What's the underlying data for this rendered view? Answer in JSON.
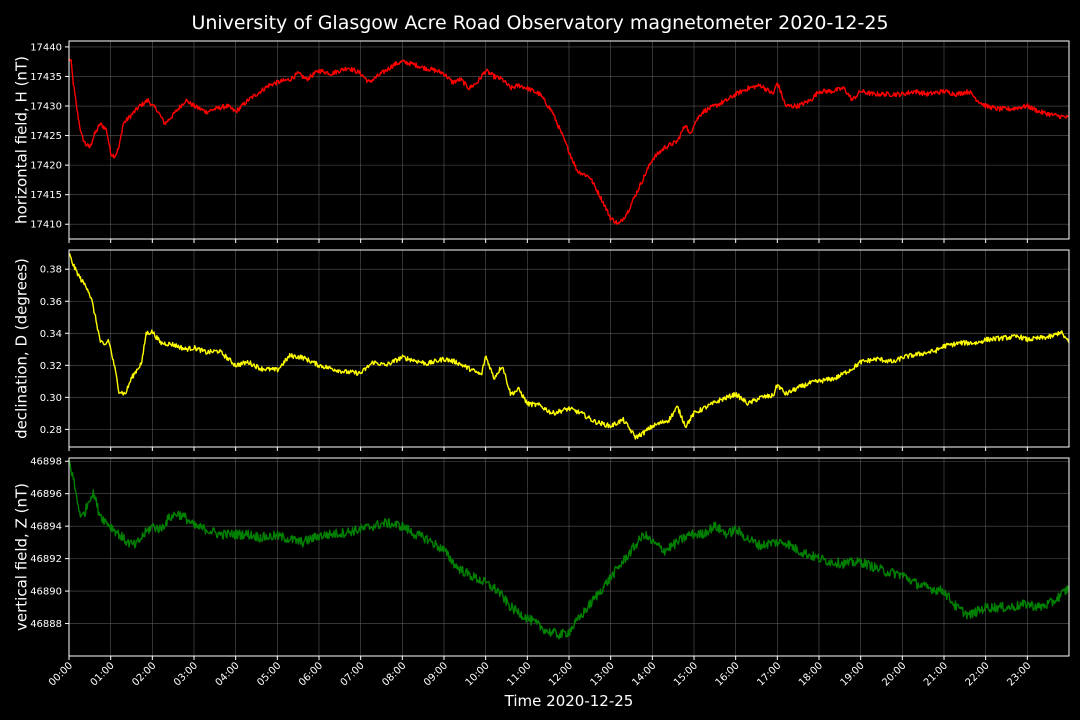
{
  "chart_data": {
    "title": "University of Glasgow Acre Road Observatory magnetometer 2020-12-25",
    "xlabel": "Time 2020-12-25",
    "x_tick_labels": [
      "00:00",
      "01:00",
      "02:00",
      "03:00",
      "04:00",
      "05:00",
      "06:00",
      "07:00",
      "08:00",
      "09:00",
      "10:00",
      "11:00",
      "12:00",
      "13:00",
      "14:00",
      "15:00",
      "16:00",
      "17:00",
      "18:00",
      "19:00",
      "20:00",
      "21:00",
      "22:00",
      "23:00"
    ],
    "xlim_hours": [
      0,
      24
    ],
    "panels": [
      {
        "type": "line",
        "ylabel": "horizontal field, H (nT)",
        "color": "#ff0000",
        "ylim": [
          17407.5,
          17441
        ],
        "y_ticks": [
          17410,
          17415,
          17420,
          17425,
          17430,
          17435,
          17440
        ],
        "y_tick_labels": [
          "17410",
          "17415",
          "17420",
          "17425",
          "17430",
          "17435",
          "17440"
        ],
        "series": {
          "x_hours": [
            0,
            0.05,
            0.1,
            0.2,
            0.3,
            0.4,
            0.5,
            0.6,
            0.75,
            0.9,
            1.0,
            1.1,
            1.2,
            1.3,
            1.5,
            1.7,
            1.9,
            2.0,
            2.1,
            2.3,
            2.5,
            2.8,
            3.0,
            3.3,
            3.5,
            3.8,
            4.0,
            4.3,
            4.5,
            4.8,
            5.0,
            5.3,
            5.5,
            5.7,
            6.0,
            6.3,
            6.5,
            6.7,
            7.0,
            7.2,
            7.5,
            7.8,
            8.0,
            8.3,
            8.5,
            8.8,
            9.0,
            9.2,
            9.4,
            9.6,
            9.8,
            10.0,
            10.2,
            10.4,
            10.6,
            10.8,
            11.0,
            11.3,
            11.6,
            11.9,
            12.2,
            12.5,
            12.8,
            13.0,
            13.2,
            13.4,
            13.6,
            13.8,
            14.0,
            14.3,
            14.6,
            14.8,
            14.9,
            15.0,
            15.2,
            15.5,
            15.8,
            16.0,
            16.3,
            16.6,
            16.9,
            17.0,
            17.2,
            17.5,
            17.8,
            18.0,
            18.3,
            18.6,
            18.8,
            19.0,
            19.3,
            19.6,
            20.0,
            20.3,
            20.6,
            21.0,
            21.3,
            21.6,
            21.8,
            22.0,
            22.3,
            22.6,
            23.0,
            23.3,
            23.6,
            24.0
          ],
          "values": [
            17438,
            17437.5,
            17434,
            17429,
            17425,
            17423.5,
            17423,
            17425,
            17427,
            17426,
            17422,
            17421.5,
            17423,
            17427,
            17428.5,
            17430,
            17431,
            17430,
            17429.5,
            17427,
            17428.5,
            17431,
            17430,
            17429,
            17429.5,
            17430,
            17429,
            17431,
            17432,
            17433.5,
            17434,
            17434.5,
            17435.5,
            17434.5,
            17436,
            17435.5,
            17436,
            17436.5,
            17435.5,
            17434,
            17435.5,
            17437,
            17437.5,
            17437,
            17436.5,
            17436,
            17435.5,
            17434,
            17434.5,
            17433,
            17434,
            17436,
            17435,
            17434.5,
            17433,
            17433.5,
            17433,
            17432,
            17429,
            17424,
            17419,
            17418,
            17414,
            17411,
            17410,
            17412,
            17415,
            17418,
            17421,
            17423,
            17424,
            17427,
            17425,
            17427,
            17429,
            17430,
            17431,
            17432,
            17433,
            17433.5,
            17432,
            17434,
            17430,
            17430,
            17431,
            17432.5,
            17432.5,
            17433,
            17431,
            17432.5,
            17432,
            17432,
            17432,
            17432.5,
            17432,
            17432.5,
            17432,
            17432.5,
            17431,
            17430,
            17429.5,
            17429.5,
            17430,
            17429,
            17428.5,
            17428
          ]
        }
      },
      {
        "type": "line",
        "ylabel": "declination, D (degrees)",
        "color": "#ffff00",
        "ylim": [
          0.269,
          0.392
        ],
        "y_ticks": [
          0.28,
          0.3,
          0.32,
          0.34,
          0.36,
          0.38
        ],
        "y_tick_labels": [
          "0.28",
          "0.30",
          "0.32",
          "0.34",
          "0.36",
          "0.38"
        ],
        "series": {
          "x_hours": [
            0,
            0.05,
            0.15,
            0.3,
            0.45,
            0.55,
            0.65,
            0.75,
            0.85,
            0.95,
            1.0,
            1.1,
            1.2,
            1.35,
            1.5,
            1.65,
            1.75,
            1.85,
            2.0,
            2.2,
            2.5,
            2.8,
            3.0,
            3.3,
            3.6,
            4.0,
            4.3,
            4.6,
            5.0,
            5.3,
            5.6,
            6.0,
            6.3,
            6.6,
            7.0,
            7.3,
            7.6,
            8.0,
            8.3,
            8.6,
            9.0,
            9.3,
            9.6,
            9.9,
            10.0,
            10.2,
            10.4,
            10.6,
            10.8,
            11.0,
            11.3,
            11.6,
            12.0,
            12.3,
            12.6,
            13.0,
            13.3,
            13.6,
            13.8,
            14.0,
            14.2,
            14.4,
            14.6,
            14.8,
            15.0,
            15.3,
            15.6,
            16.0,
            16.3,
            16.6,
            16.9,
            17.0,
            17.2,
            17.5,
            17.8,
            18.0,
            18.4,
            18.8,
            19.0,
            19.4,
            19.8,
            20.0,
            20.4,
            20.8,
            21.0,
            21.4,
            21.8,
            22.0,
            22.4,
            22.8,
            23.0,
            23.3,
            23.6,
            23.8,
            24.0
          ],
          "values": [
            0.39,
            0.386,
            0.38,
            0.373,
            0.368,
            0.36,
            0.348,
            0.335,
            0.332,
            0.336,
            0.33,
            0.318,
            0.304,
            0.302,
            0.312,
            0.318,
            0.322,
            0.34,
            0.341,
            0.334,
            0.333,
            0.33,
            0.331,
            0.328,
            0.329,
            0.32,
            0.322,
            0.318,
            0.317,
            0.326,
            0.325,
            0.32,
            0.318,
            0.316,
            0.315,
            0.322,
            0.32,
            0.325,
            0.323,
            0.321,
            0.324,
            0.322,
            0.318,
            0.314,
            0.326,
            0.312,
            0.32,
            0.302,
            0.305,
            0.296,
            0.295,
            0.29,
            0.293,
            0.29,
            0.285,
            0.282,
            0.286,
            0.275,
            0.278,
            0.282,
            0.284,
            0.286,
            0.294,
            0.282,
            0.29,
            0.294,
            0.298,
            0.302,
            0.296,
            0.3,
            0.301,
            0.308,
            0.302,
            0.306,
            0.309,
            0.31,
            0.312,
            0.318,
            0.322,
            0.324,
            0.322,
            0.325,
            0.327,
            0.329,
            0.332,
            0.334,
            0.334,
            0.336,
            0.337,
            0.338,
            0.336,
            0.337,
            0.338,
            0.341,
            0.334
          ],
          "noise": 0.0015
        }
      },
      {
        "type": "line",
        "ylabel": "vertical field, Z (nT)",
        "color": "#008000",
        "ylim": [
          46886,
          46898.2
        ],
        "y_ticks": [
          46888,
          46890,
          46892,
          46894,
          46896,
          46898
        ],
        "y_tick_labels": [
          "46888",
          "46890",
          "46892",
          "46894",
          "46896",
          "46898"
        ],
        "series": {
          "x_hours": [
            0,
            0.1,
            0.2,
            0.3,
            0.4,
            0.5,
            0.6,
            0.7,
            0.8,
            1.0,
            1.2,
            1.4,
            1.6,
            1.8,
            2.0,
            2.2,
            2.4,
            2.6,
            2.8,
            3.0,
            3.3,
            3.6,
            4.0,
            4.3,
            4.6,
            5.0,
            5.3,
            5.6,
            6.0,
            6.3,
            6.6,
            7.0,
            7.3,
            7.6,
            8.0,
            8.3,
            8.6,
            9.0,
            9.3,
            9.6,
            10.0,
            10.3,
            10.6,
            10.9,
            11.2,
            11.5,
            11.8,
            12.0,
            12.3,
            12.6,
            12.9,
            13.2,
            13.5,
            13.8,
            14.0,
            14.3,
            14.6,
            14.9,
            15.2,
            15.5,
            15.8,
            16.0,
            16.3,
            16.6,
            16.9,
            17.2,
            17.5,
            17.8,
            18.0,
            18.3,
            18.6,
            19.0,
            19.3,
            19.6,
            20.0,
            20.3,
            20.6,
            21.0,
            21.3,
            21.6,
            22.0,
            22.3,
            22.6,
            23.0,
            23.3,
            23.6,
            24.0
          ],
          "values": [
            46898,
            46897,
            46895.5,
            46894.5,
            46895,
            46895.8,
            46896,
            46895,
            46894.5,
            46894,
            46893.5,
            46893,
            46892.8,
            46893.5,
            46894,
            46893.8,
            46894.5,
            46894.8,
            46894.5,
            46894,
            46893.8,
            46893.5,
            46893.5,
            46893.5,
            46893.3,
            46893.4,
            46893.2,
            46893,
            46893.4,
            46893.5,
            46893.6,
            46893.8,
            46894,
            46894.2,
            46894,
            46893.5,
            46893.2,
            46892.5,
            46891.5,
            46891,
            46890.5,
            46890,
            46889,
            46888.5,
            46888,
            46887.5,
            46887.3,
            46887.5,
            46888.5,
            46889.5,
            46890.5,
            46891.5,
            46892.5,
            46893.5,
            46893,
            46892.5,
            46893,
            46893.5,
            46893.5,
            46894,
            46893.5,
            46893.8,
            46893.2,
            46892.8,
            46893,
            46893,
            46892.5,
            46892.2,
            46892,
            46891.8,
            46891.7,
            46891.8,
            46891.5,
            46891.2,
            46891,
            46890.5,
            46890.2,
            46890,
            46889,
            46888.5,
            46889,
            46889,
            46889,
            46889.2,
            46889,
            46889.3,
            46890.2
          ],
          "noise": 0.3
        }
      }
    ]
  }
}
